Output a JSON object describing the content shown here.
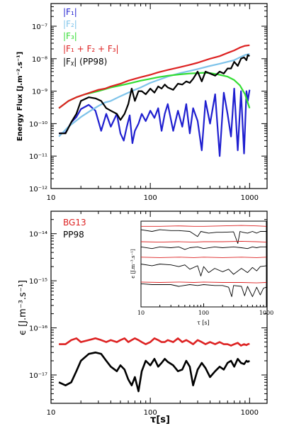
{
  "chart_data": [
    {
      "type": "line",
      "xlabel": "",
      "ylabel": "Energy Flux [J.m⁻².s⁻¹]",
      "xscale": "log",
      "yscale": "log",
      "xlim": [
        10,
        1500
      ],
      "ylim": [
        1e-12,
        5e-07
      ],
      "x_ticks": [
        {
          "value": 10,
          "label": "10"
        },
        {
          "value": 100,
          "label": "100"
        },
        {
          "value": 1000,
          "label": "1000"
        }
      ],
      "y_ticks": [
        {
          "value": 1e-12,
          "label": "10⁻¹²"
        },
        {
          "value": 1e-11,
          "label": "10⁻¹¹"
        },
        {
          "value": 1e-10,
          "label": "10⁻¹⁰"
        },
        {
          "value": 1e-09,
          "label": "10⁻⁹"
        },
        {
          "value": 1e-08,
          "label": "10⁻⁸"
        },
        {
          "value": 1e-07,
          "label": "10⁻⁷"
        }
      ],
      "legend_position": "top-left",
      "series": [
        {
          "name": "|F₁|",
          "color": "#1f1fd0",
          "x": [
            12,
            14,
            16,
            18,
            20,
            24,
            28,
            32,
            36,
            40,
            46,
            50,
            54,
            58,
            62,
            66,
            70,
            76,
            82,
            90,
            100,
            110,
            120,
            130,
            140,
            150,
            170,
            190,
            210,
            230,
            250,
            270,
            300,
            330,
            360,
            400,
            450,
            500,
            550,
            600,
            650,
            700,
            760,
            820,
            880,
            930,
            960,
            1000
          ],
          "y": [
            5e-11,
            5.2e-11,
            1.1e-10,
            1.6e-10,
            2.8e-10,
            3.8e-10,
            2.5e-10,
            6e-11,
            2e-10,
            8e-11,
            2e-10,
            5e-11,
            3e-11,
            8e-11,
            1.8e-10,
            2.5e-11,
            6e-11,
            1e-10,
            2e-10,
            1.2e-10,
            2.5e-10,
            1.5e-10,
            3e-10,
            6e-11,
            2e-10,
            4e-10,
            6e-11,
            2.5e-10,
            8e-11,
            4e-10,
            5e-11,
            3e-10,
            1.2e-10,
            1.5e-11,
            5e-10,
            1e-10,
            8e-10,
            1e-11,
            9e-10,
            2e-10,
            4e-11,
            1.2e-09,
            1.5e-11,
            1e-09,
            1.2e-11,
            1e-09,
            5e-10,
            1.1e-09
          ]
        },
        {
          "name": "|F₂|",
          "color": "#7ec3ea",
          "x": [
            12,
            15,
            20,
            25,
            30,
            35,
            40,
            50,
            60,
            70,
            80,
            100,
            120,
            150,
            200,
            250,
            300,
            400,
            500,
            600,
            700,
            800,
            900,
            1000
          ],
          "y": [
            4e-11,
            8e-11,
            1.6e-10,
            2.5e-10,
            3.5e-10,
            4.5e-10,
            5e-10,
            7e-10,
            9e-10,
            1.1e-09,
            1.3e-09,
            1.8e-09,
            2.2e-09,
            2.8e-09,
            3.6e-09,
            4.2e-09,
            4.8e-09,
            6e-09,
            7e-09,
            8e-09,
            9e-09,
            1.1e-08,
            1.3e-08,
            1.4e-08
          ]
        },
        {
          "name": "|F₃|",
          "color": "#33dd33",
          "x": [
            12,
            15,
            18,
            22,
            26,
            30,
            35,
            40,
            50,
            60,
            70,
            80,
            100,
            120,
            150,
            200,
            250,
            300,
            350,
            400,
            450,
            500,
            600,
            700,
            800,
            900,
            1000
          ],
          "y": [
            3e-10,
            5e-10,
            6.5e-10,
            8e-10,
            9e-10,
            1e-09,
            1.15e-09,
            1.3e-09,
            1.5e-09,
            1.7e-09,
            1.9e-09,
            2.1e-09,
            2.4e-09,
            2.7e-09,
            3e-09,
            3.3e-09,
            3.5e-09,
            3.6e-09,
            3.7e-09,
            3.6e-09,
            3.4e-09,
            3.2e-09,
            2.8e-09,
            2.2e-09,
            1.5e-09,
            8e-10,
            3e-10
          ]
        },
        {
          "name": "|F₁ + F₂ + F₃|",
          "color": "#dd2222",
          "x": [
            12,
            15,
            18,
            22,
            26,
            30,
            35,
            40,
            50,
            60,
            70,
            80,
            100,
            120,
            150,
            200,
            250,
            300,
            400,
            500,
            600,
            700,
            800,
            900,
            1000
          ],
          "y": [
            3e-10,
            5e-10,
            6.5e-10,
            8e-10,
            9.5e-10,
            1.1e-09,
            1.2e-09,
            1.4e-09,
            1.7e-09,
            2.1e-09,
            2.4e-09,
            2.7e-09,
            3.2e-09,
            3.8e-09,
            4.5e-09,
            5.5e-09,
            6.5e-09,
            7.5e-09,
            1e-08,
            1.2e-08,
            1.5e-08,
            1.8e-08,
            2.2e-08,
            2.5e-08,
            2.6e-08
          ]
        },
        {
          "name": "|Fᵪ| (PP98)",
          "color": "#000000",
          "x": [
            12,
            14,
            16,
            18,
            20,
            24,
            28,
            32,
            36,
            40,
            46,
            50,
            55,
            60,
            65,
            70,
            76,
            82,
            90,
            100,
            110,
            120,
            130,
            140,
            150,
            170,
            190,
            210,
            230,
            250,
            270,
            300,
            330,
            360,
            400,
            450,
            500,
            550,
            600,
            650,
            700,
            760,
            820,
            880,
            930,
            960,
            1000
          ],
          "y": [
            5e-11,
            5e-11,
            1.1e-10,
            2e-10,
            5e-10,
            6.5e-10,
            6e-10,
            5e-10,
            3e-10,
            2.5e-10,
            2e-10,
            1.3e-10,
            2e-10,
            4e-10,
            1.2e-09,
            5e-10,
            1e-09,
            1e-09,
            8e-10,
            1.2e-09,
            9e-10,
            1.4e-09,
            1.2e-09,
            1.6e-09,
            1.3e-09,
            1.1e-09,
            1.7e-09,
            1.6e-09,
            2e-09,
            1.8e-09,
            2.4e-09,
            4e-09,
            2e-09,
            4e-09,
            3.5e-09,
            3e-09,
            4e-09,
            3.5e-09,
            5e-09,
            5e-09,
            8e-09,
            6e-09,
            1e-08,
            1.1e-08,
            9e-09,
            1.3e-08,
            1.2e-08
          ]
        }
      ]
    },
    {
      "type": "line",
      "xlabel": "τ[s]",
      "ylabel": "ϵ [J.m⁻³.s⁻¹]",
      "xscale": "log",
      "yscale": "log",
      "xlim": [
        10,
        1500
      ],
      "ylim": [
        2.5e-18,
        3e-14
      ],
      "x_ticks": [
        {
          "value": 10,
          "label": "10"
        },
        {
          "value": 100,
          "label": "100"
        },
        {
          "value": 1000,
          "label": "1000"
        }
      ],
      "y_ticks": [
        {
          "value": 1e-17,
          "label": "10⁻¹⁷"
        },
        {
          "value": 1e-16,
          "label": "10⁻¹⁶"
        },
        {
          "value": 1e-15,
          "label": "10⁻¹⁵"
        },
        {
          "value": 1e-14,
          "label": "10⁻¹⁴"
        }
      ],
      "legend_position": "top-left",
      "series": [
        {
          "name": "BG13",
          "color": "#dd2222",
          "x": [
            12,
            14,
            16,
            18,
            20,
            24,
            28,
            32,
            36,
            40,
            46,
            50,
            55,
            60,
            65,
            70,
            76,
            82,
            90,
            100,
            110,
            120,
            130,
            140,
            150,
            170,
            190,
            210,
            230,
            250,
            270,
            300,
            330,
            360,
            400,
            450,
            500,
            550,
            600,
            650,
            700,
            760,
            820,
            880,
            930,
            960,
            1000
          ],
          "y": [
            4.5e-17,
            4.5e-17,
            5.5e-17,
            6e-17,
            5e-17,
            5.5e-17,
            6e-17,
            5.5e-17,
            5e-17,
            5.5e-17,
            5e-17,
            5.5e-17,
            6e-17,
            5e-17,
            5.5e-17,
            6e-17,
            5.5e-17,
            5e-17,
            4.5e-17,
            5e-17,
            6e-17,
            5.5e-17,
            5e-17,
            5e-17,
            5.5e-17,
            5e-17,
            6e-17,
            5e-17,
            5.5e-17,
            5e-17,
            4.5e-17,
            5.5e-17,
            5e-17,
            4.5e-17,
            5e-17,
            4.5e-17,
            5e-17,
            4.5e-17,
            4.5e-17,
            4.2e-17,
            4.5e-17,
            4.8e-17,
            4.2e-17,
            4.5e-17,
            4.3e-17,
            4.5e-17,
            4.6e-17
          ]
        },
        {
          "name": "PP98",
          "color": "#000000",
          "x": [
            12,
            14,
            16,
            18,
            20,
            24,
            28,
            32,
            36,
            40,
            46,
            50,
            55,
            60,
            65,
            70,
            76,
            82,
            90,
            100,
            110,
            120,
            130,
            140,
            150,
            170,
            190,
            210,
            230,
            250,
            270,
            300,
            330,
            360,
            400,
            450,
            500,
            550,
            600,
            650,
            700,
            760,
            820,
            880,
            930,
            960,
            1000
          ],
          "y": [
            7e-18,
            6e-18,
            7e-18,
            1.2e-17,
            2e-17,
            2.8e-17,
            3e-17,
            2.8e-17,
            2e-17,
            1.5e-17,
            1.2e-17,
            1.6e-17,
            1.3e-17,
            8e-18,
            6e-18,
            9e-18,
            4.5e-18,
            1.2e-17,
            2e-17,
            1.6e-17,
            2.2e-17,
            1.5e-17,
            1.8e-17,
            2.2e-17,
            1.9e-17,
            1.6e-17,
            1.2e-17,
            1.3e-17,
            2e-17,
            1.5e-17,
            6e-18,
            1.3e-17,
            1.8e-17,
            1.4e-17,
            9e-18,
            1.2e-17,
            1.5e-17,
            1.3e-17,
            1.8e-17,
            2e-17,
            1.5e-17,
            2.2e-17,
            1.8e-17,
            1.7e-17,
            2e-17,
            1.9e-17,
            2e-17
          ]
        }
      ]
    },
    {
      "type": "line",
      "role": "inset",
      "xlabel": "τ [s]",
      "ylabel": "ϵ [J.m⁻³.s⁻¹]",
      "xscale": "log",
      "xlim": [
        10,
        1000
      ],
      "ylim": [
        0,
        100
      ],
      "x_ticks": [
        {
          "value": 10,
          "label": "10"
        },
        {
          "value": 100,
          "label": "100"
        },
        {
          "value": 1000,
          "label": "1000"
        }
      ],
      "series": [
        {
          "color": "#dd2222",
          "x": [
            10,
            20,
            40,
            70,
            100,
            200,
            400,
            700,
            1000
          ],
          "y": [
            94,
            94,
            94.5,
            94,
            94,
            94.5,
            95,
            94.5,
            94
          ]
        },
        {
          "color": "#000000",
          "x": [
            10,
            15,
            20,
            30,
            40,
            60,
            80,
            90,
            120,
            160,
            200,
            300,
            350,
            380,
            420,
            500,
            600,
            700,
            800,
            1000
          ],
          "y": [
            90,
            88,
            90,
            89,
            89,
            88,
            82,
            88,
            86,
            87,
            87,
            87.5,
            74,
            88,
            87,
            86,
            88,
            86,
            88,
            88
          ]
        },
        {
          "color": "#dd2222",
          "x": [
            10,
            20,
            40,
            70,
            100,
            200,
            400,
            700,
            1000
          ],
          "y": [
            76,
            75.5,
            76,
            75.5,
            76,
            76,
            76.5,
            76,
            75.5
          ]
        },
        {
          "color": "#000000",
          "x": [
            10,
            15,
            20,
            30,
            40,
            50,
            60,
            80,
            100,
            150,
            200,
            300,
            400,
            500,
            600,
            700,
            800,
            1000
          ],
          "y": [
            70,
            68,
            70,
            69,
            70,
            67,
            69,
            70,
            68,
            70,
            69,
            70,
            69,
            68,
            70,
            69,
            70,
            70
          ]
        },
        {
          "color": "#dd2222",
          "x": [
            10,
            20,
            40,
            70,
            100,
            200,
            400,
            700,
            1000
          ],
          "y": [
            58,
            57.5,
            58,
            57.5,
            58,
            57.5,
            58,
            57.5,
            58
          ]
        },
        {
          "color": "#000000",
          "x": [
            10,
            15,
            20,
            30,
            40,
            50,
            60,
            80,
            90,
            100,
            120,
            150,
            200,
            250,
            300,
            400,
            500,
            600,
            700,
            800,
            1000
          ],
          "y": [
            50,
            48,
            50,
            49,
            47,
            49,
            44,
            48,
            36,
            47,
            40,
            45,
            41,
            44,
            38,
            45,
            40,
            46,
            42,
            47,
            48
          ]
        },
        {
          "color": "#dd2222",
          "x": [
            10,
            20,
            40,
            70,
            100,
            200,
            400,
            700,
            1000
          ],
          "y": [
            29,
            28.5,
            29,
            28.5,
            29,
            28.5,
            28.5,
            28,
            28.5
          ]
        },
        {
          "color": "#000000",
          "x": [
            10,
            15,
            20,
            30,
            40,
            60,
            80,
            100,
            150,
            200,
            250,
            280,
            300,
            400,
            450,
            500,
            600,
            700,
            800,
            900,
            1000
          ],
          "y": [
            27,
            26,
            26,
            26,
            24,
            26,
            25,
            26,
            25,
            25,
            23,
            12,
            25,
            24,
            13,
            24,
            12,
            23,
            14,
            22,
            23
          ]
        }
      ]
    }
  ]
}
